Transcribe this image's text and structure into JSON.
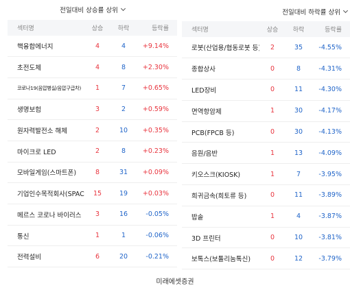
{
  "rising_panel": {
    "sort_label": "전일대비 상승률 상위",
    "headers": {
      "sector": "섹터명",
      "up": "상승",
      "down": "하락",
      "rate": "등락률"
    },
    "rows": [
      {
        "sector": "핵융합에너지",
        "up": "4",
        "down": "4",
        "rate": "+9.14%"
      },
      {
        "sector": "초전도체",
        "up": "4",
        "down": "8",
        "rate": "+2.30%"
      },
      {
        "sector": "코로나19(음압병실/음압구급차)",
        "up": "1",
        "down": "7",
        "rate": "+0.65%"
      },
      {
        "sector": "생명보험",
        "up": "3",
        "down": "2",
        "rate": "+0.59%"
      },
      {
        "sector": "원자력발전소 해체",
        "up": "2",
        "down": "10",
        "rate": "+0.35%"
      },
      {
        "sector": "마이크로 LED",
        "up": "2",
        "down": "8",
        "rate": "+0.23%"
      },
      {
        "sector": "모바일게임(스마트폰)",
        "up": "8",
        "down": "31",
        "rate": "+0.09%"
      },
      {
        "sector": "기업인수목적회사(SPAC)",
        "up": "15",
        "down": "19",
        "rate": "+0.03%"
      },
      {
        "sector": "메르스 코로나 바이러스",
        "up": "3",
        "down": "16",
        "rate": "-0.05%"
      },
      {
        "sector": "통신",
        "up": "1",
        "down": "1",
        "rate": "-0.06%"
      },
      {
        "sector": "전력설비",
        "up": "6",
        "down": "20",
        "rate": "-0.21%"
      }
    ]
  },
  "falling_panel": {
    "sort_label": "전일대비 하락률 상위",
    "headers": {
      "sector": "섹터명",
      "up": "상승",
      "down": "하락",
      "rate": "등락률"
    },
    "rows": [
      {
        "sector": "로봇(산업용/협동로봇 등)",
        "up": "2",
        "down": "35",
        "rate": "-4.55%"
      },
      {
        "sector": "종합상사",
        "up": "0",
        "down": "8",
        "rate": "-4.31%"
      },
      {
        "sector": "LED장비",
        "up": "0",
        "down": "11",
        "rate": "-4.30%"
      },
      {
        "sector": "면역항암제",
        "up": "1",
        "down": "30",
        "rate": "-4.17%"
      },
      {
        "sector": "PCB(FPCB 등)",
        "up": "0",
        "down": "30",
        "rate": "-4.13%"
      },
      {
        "sector": "음원/음반",
        "up": "1",
        "down": "13",
        "rate": "-4.09%"
      },
      {
        "sector": "키오스크(KIOSK)",
        "up": "1",
        "down": "7",
        "rate": "-3.95%"
      },
      {
        "sector": "희귀금속(희토류 등)",
        "up": "0",
        "down": "11",
        "rate": "-3.89%"
      },
      {
        "sector": "밥솥",
        "up": "1",
        "down": "4",
        "rate": "-3.87%"
      },
      {
        "sector": "3D 프린터",
        "up": "0",
        "down": "10",
        "rate": "-3.81%"
      },
      {
        "sector": "보톡스(보톨리눔톡신)",
        "up": "0",
        "down": "12",
        "rate": "-3.79%"
      }
    ]
  },
  "footer": {
    "source": "미래에셋증권"
  },
  "colors": {
    "rise": "#e8323c",
    "fall": "#1e63c8",
    "header_bg": "#f5f6f8"
  }
}
